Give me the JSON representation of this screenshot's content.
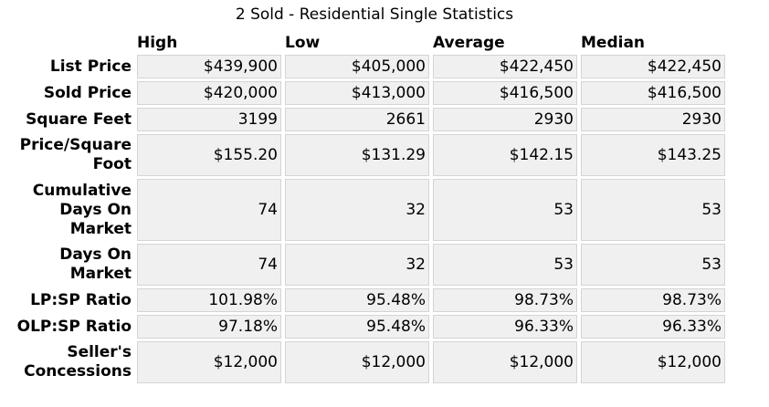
{
  "caption": "2 Sold - Residential Single Statistics",
  "columns": [
    "High",
    "Low",
    "Average",
    "Median"
  ],
  "rows": [
    {
      "label": "List Price",
      "values": [
        "$439,900",
        "$405,000",
        "$422,450",
        "$422,450"
      ]
    },
    {
      "label": "Sold Price",
      "values": [
        "$420,000",
        "$413,000",
        "$416,500",
        "$416,500"
      ]
    },
    {
      "label": "Square Feet",
      "values": [
        "3199",
        "2661",
        "2930",
        "2930"
      ]
    },
    {
      "label": "Price/Square Foot",
      "values": [
        "$155.20",
        "$131.29",
        "$142.15",
        "$143.25"
      ]
    },
    {
      "label": "Cumulative Days On Market",
      "values": [
        "74",
        "32",
        "53",
        "53"
      ]
    },
    {
      "label": "Days On Market",
      "values": [
        "74",
        "32",
        "53",
        "53"
      ]
    },
    {
      "label": "LP:SP Ratio",
      "values": [
        "101.98%",
        "95.48%",
        "98.73%",
        "98.73%"
      ]
    },
    {
      "label": "OLP:SP Ratio",
      "values": [
        "97.18%",
        "95.48%",
        "96.33%",
        "96.33%"
      ]
    },
    {
      "label": "Seller's Concessions",
      "values": [
        "$12,000",
        "$12,000",
        "$12,000",
        "$12,000"
      ]
    }
  ]
}
